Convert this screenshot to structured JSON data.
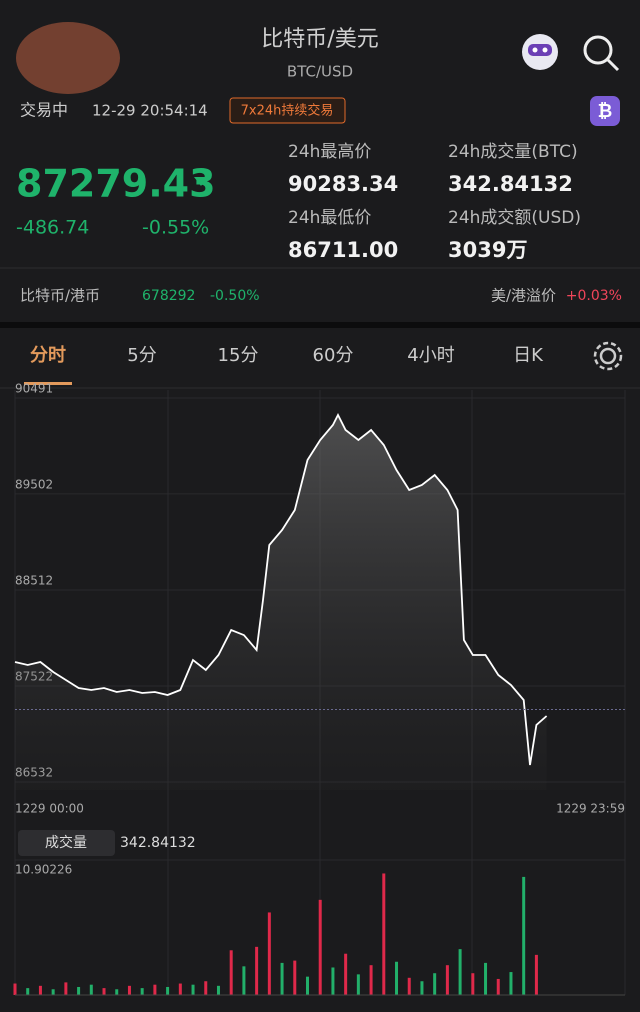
{
  "header": {
    "title": "比特币/美元",
    "subtitle": "BTC/USD"
  },
  "status": {
    "state": "交易中",
    "time": "12-29 20:54:14",
    "badge": "7x24h持续交易"
  },
  "quote": {
    "price": 87279.43,
    "change": -486.74,
    "change_pct": "-0.55%"
  },
  "stats": [
    {
      "label": "24h最高价",
      "value": "90283.34"
    },
    {
      "label": "24h成交量(BTC)",
      "value": "342.84132"
    },
    {
      "label": "24h最低价",
      "value": "86711.00"
    },
    {
      "label": "24h成交额(USD)",
      "value": "3039万"
    }
  ],
  "cross": {
    "pair": "比特币/港币",
    "price": "678292",
    "change_pct": "-0.50%",
    "premium_label": "美/港溢价",
    "premium": "+0.03%"
  },
  "tabs": [
    "分时",
    "5分",
    "15分",
    "60分",
    "4小时",
    "日K"
  ],
  "volume_panel": {
    "label": "成交量",
    "value": "342.84132"
  },
  "chart_data": [
    {
      "type": "line",
      "color": "#ffffff",
      "x_labels": [
        "1229 00:00",
        "1229 23:59"
      ],
      "xlim": [
        0,
        1439
      ],
      "ylim": [
        86532,
        90491
      ],
      "yticks": [
        90491,
        89502,
        88512,
        87522,
        86532
      ],
      "x": [
        0,
        30,
        60,
        90,
        120,
        150,
        180,
        210,
        240,
        270,
        300,
        330,
        360,
        390,
        420,
        450,
        480,
        510,
        540,
        570,
        585,
        600,
        630,
        660,
        690,
        720,
        750,
        762,
        780,
        810,
        840,
        870,
        900,
        930,
        960,
        990,
        1020,
        1044,
        1059,
        1080,
        1110,
        1140,
        1170,
        1200,
        1215,
        1230,
        1254
      ],
      "values": [
        87769,
        87738,
        87769,
        87666,
        87584,
        87501,
        87480,
        87501,
        87460,
        87480,
        87450,
        87460,
        87429,
        87480,
        87790,
        87687,
        87841,
        88099,
        88047,
        87893,
        88408,
        88975,
        89130,
        89336,
        89852,
        90058,
        90213,
        90316,
        90161,
        90058,
        90161,
        90006,
        89749,
        89543,
        89594,
        89697,
        89543,
        89336,
        87996,
        87841,
        87841,
        87635,
        87532,
        87377,
        86707,
        87120,
        87212
      ]
    },
    {
      "type": "bar",
      "ylim": [
        0,
        10.90226
      ],
      "yticks": [
        10.90226
      ],
      "xlim": [
        0,
        1439
      ],
      "x": [
        0,
        30,
        60,
        90,
        120,
        150,
        180,
        210,
        240,
        270,
        300,
        330,
        360,
        390,
        420,
        450,
        480,
        510,
        540,
        570,
        600,
        630,
        660,
        690,
        720,
        750,
        780,
        810,
        840,
        870,
        900,
        930,
        960,
        990,
        1020,
        1050,
        1080,
        1110,
        1140,
        1170,
        1200,
        1230
      ],
      "values": [
        1.0,
        0.6,
        0.8,
        0.5,
        1.1,
        0.7,
        0.9,
        0.6,
        0.5,
        0.8,
        0.6,
        0.9,
        0.7,
        1.0,
        0.9,
        1.2,
        0.8,
        3.9,
        2.5,
        4.2,
        7.2,
        2.8,
        3.0,
        1.6,
        8.3,
        2.4,
        3.6,
        1.8,
        2.6,
        10.6,
        2.9,
        1.5,
        1.2,
        1.9,
        2.6,
        4.0,
        1.9,
        2.8,
        1.4,
        2.0,
        10.3,
        3.5
      ],
      "colors": [
        "#e0294a",
        "#22b06a",
        "#e0294a",
        "#22b06a",
        "#e0294a",
        "#22b06a",
        "#22b06a",
        "#e0294a",
        "#22b06a",
        "#e0294a",
        "#22b06a",
        "#e0294a",
        "#22b06a",
        "#e0294a",
        "#22b06a",
        "#e0294a",
        "#22b06a",
        "#e0294a",
        "#22b06a",
        "#e0294a",
        "#e0294a",
        "#22b06a",
        "#e0294a",
        "#22b06a",
        "#e0294a",
        "#22b06a",
        "#e0294a",
        "#22b06a",
        "#e0294a",
        "#e0294a",
        "#22b06a",
        "#e0294a",
        "#22b06a",
        "#22b06a",
        "#e0294a",
        "#22b06a",
        "#e0294a",
        "#22b06a",
        "#e0294a",
        "#22b06a",
        "#22b06a",
        "#e0294a"
      ]
    }
  ]
}
